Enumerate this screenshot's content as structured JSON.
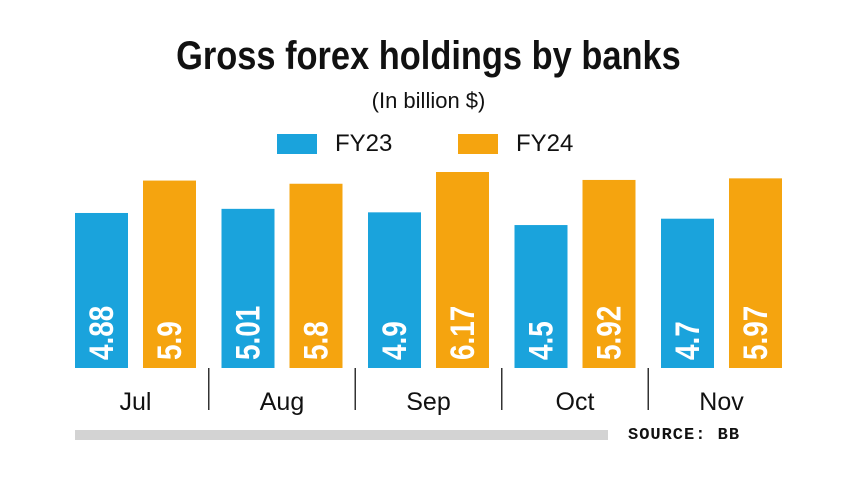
{
  "chart_data": {
    "type": "bar",
    "title": "Gross forex holdings by banks",
    "subtitle": "(In billion $)",
    "categories": [
      "Jul",
      "Aug",
      "Sep",
      "Oct",
      "Nov"
    ],
    "series": [
      {
        "name": "FY23",
        "color": "#1aa3dc",
        "values": [
          4.88,
          5.01,
          4.9,
          4.5,
          4.7
        ],
        "labels": [
          "4.88",
          "5.01",
          "4.9",
          "4.5",
          "4.7"
        ]
      },
      {
        "name": "FY24",
        "color": "#f5a40f",
        "values": [
          5.9,
          5.8,
          6.17,
          5.92,
          5.97
        ],
        "labels": [
          "5.9",
          "5.8",
          "6.17",
          "5.92",
          "5.97"
        ]
      }
    ],
    "ylim": [
      0,
      6.17
    ],
    "grid": false,
    "legend": "top-center"
  },
  "source": "SOURCE: BB",
  "colors": {
    "divider": "#333333",
    "scrollbar": "#d3d3d3",
    "value_label": "#ffffff"
  }
}
